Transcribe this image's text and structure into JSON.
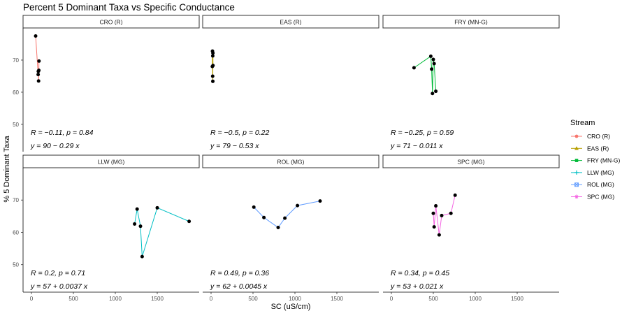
{
  "title": "Percent 5 Dominant Taxa vs Specific Conductance",
  "legend_title": "Stream",
  "chart_data": {
    "type": "line",
    "title": "Percent 5 Dominant Taxa vs Specific Conductance",
    "xlabel": "SC (uS/cm)",
    "ylabel": "% 5 Dominant Taxa",
    "xlim": [
      -100,
      2000
    ],
    "ylim": [
      41.5,
      80
    ],
    "x_ticks": [
      0,
      500,
      1000,
      1500
    ],
    "y_ticks": [
      50,
      60,
      70
    ],
    "x_tick_labels": [
      "0",
      "500",
      "1000",
      "1500"
    ],
    "y_tick_labels": [
      "50",
      "60",
      "70"
    ],
    "grid": false,
    "legend_position": "right",
    "panels": [
      {
        "name": "CRO (R)",
        "color": "#F8766D",
        "marker": "circle",
        "x": [
          50,
          80,
          82,
          85,
          88,
          90
        ],
        "y": [
          77.5,
          65.5,
          66.5,
          63.5,
          66.8,
          69.7
        ],
        "stats": "R = −0.11, p = 0.84",
        "equation": "y = 90 − 0.29 x"
      },
      {
        "name": "EAS (R)",
        "color": "#B79F00",
        "marker": "triangle",
        "x": [
          15,
          17,
          19,
          20,
          21,
          22,
          23
        ],
        "y": [
          68.0,
          72.8,
          65.0,
          71.3,
          63.4,
          72.2,
          68.3
        ],
        "stats": "R = −0.5, p = 0.22",
        "equation": "y = 79 − 0.53 x"
      },
      {
        "name": "FRY (MN-G)",
        "color": "#00BA38",
        "marker": "square",
        "x": [
          270,
          470,
          480,
          490,
          500,
          510,
          530
        ],
        "y": [
          67.6,
          71.2,
          67.2,
          59.6,
          70.2,
          68.9,
          60.3
        ],
        "stats": "R = −0.25, p = 0.59",
        "equation": "y = 71 − 0.011 x"
      },
      {
        "name": "LLW (MG)",
        "color": "#00BFC4",
        "marker": "plus",
        "x": [
          1230,
          1260,
          1300,
          1320,
          1500,
          1880
        ],
        "y": [
          62.6,
          67.2,
          61.9,
          52.5,
          67.6,
          63.4
        ],
        "stats": "R = 0.2, p = 0.71",
        "equation": "y = 57 + 0.0037 x"
      },
      {
        "name": "ROL (MG)",
        "color": "#619CFF",
        "marker": "square-x",
        "x": [
          510,
          630,
          800,
          880,
          1030,
          1300
        ],
        "y": [
          67.8,
          64.6,
          61.5,
          64.4,
          68.3,
          69.7
        ],
        "stats": "R = 0.49, p = 0.36",
        "equation": "y = 62 + 0.0045 x"
      },
      {
        "name": "SPC (MG)",
        "color": "#F564E3",
        "marker": "star",
        "x": [
          500,
          510,
          530,
          570,
          600,
          710,
          760
        ],
        "y": [
          65.9,
          61.7,
          68.2,
          59.2,
          65.2,
          65.9,
          71.5
        ],
        "stats": "R = 0.34, p = 0.45",
        "equation": "y = 53 + 0.021 x"
      }
    ]
  }
}
